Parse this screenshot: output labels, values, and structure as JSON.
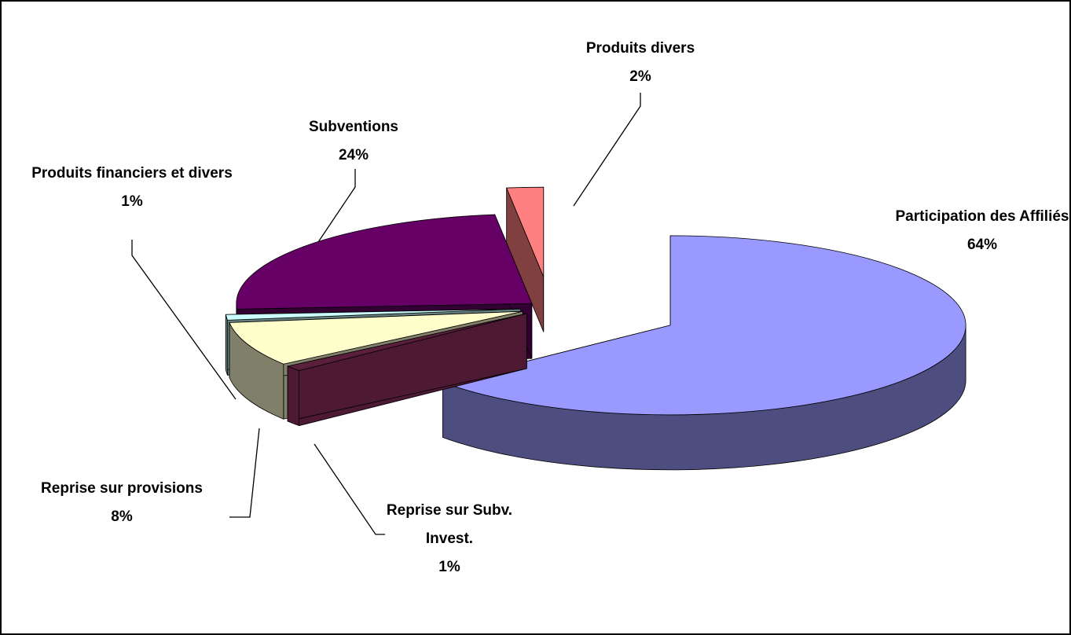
{
  "chart_data": {
    "type": "pie3d",
    "categories": [
      "Participation des Affiliés",
      "Reprise sur Subv. Invest.",
      "Reprise sur provisions",
      "Produits financiers et divers",
      "Subventions",
      "Produits divers"
    ],
    "values": [
      64,
      1,
      8,
      1,
      24,
      2
    ],
    "value_labels": [
      "64%",
      "1%",
      "8%",
      "1%",
      "24%",
      "2%"
    ],
    "colors": [
      "#9999ff",
      "#5a1f3a",
      "#ffffcc",
      "#ccffff",
      "#660066",
      "#ff8080"
    ],
    "side_colors": [
      "#4d4d80",
      "#4d1933",
      "#80806a",
      "#668080",
      "#330033",
      "#804040"
    ]
  }
}
